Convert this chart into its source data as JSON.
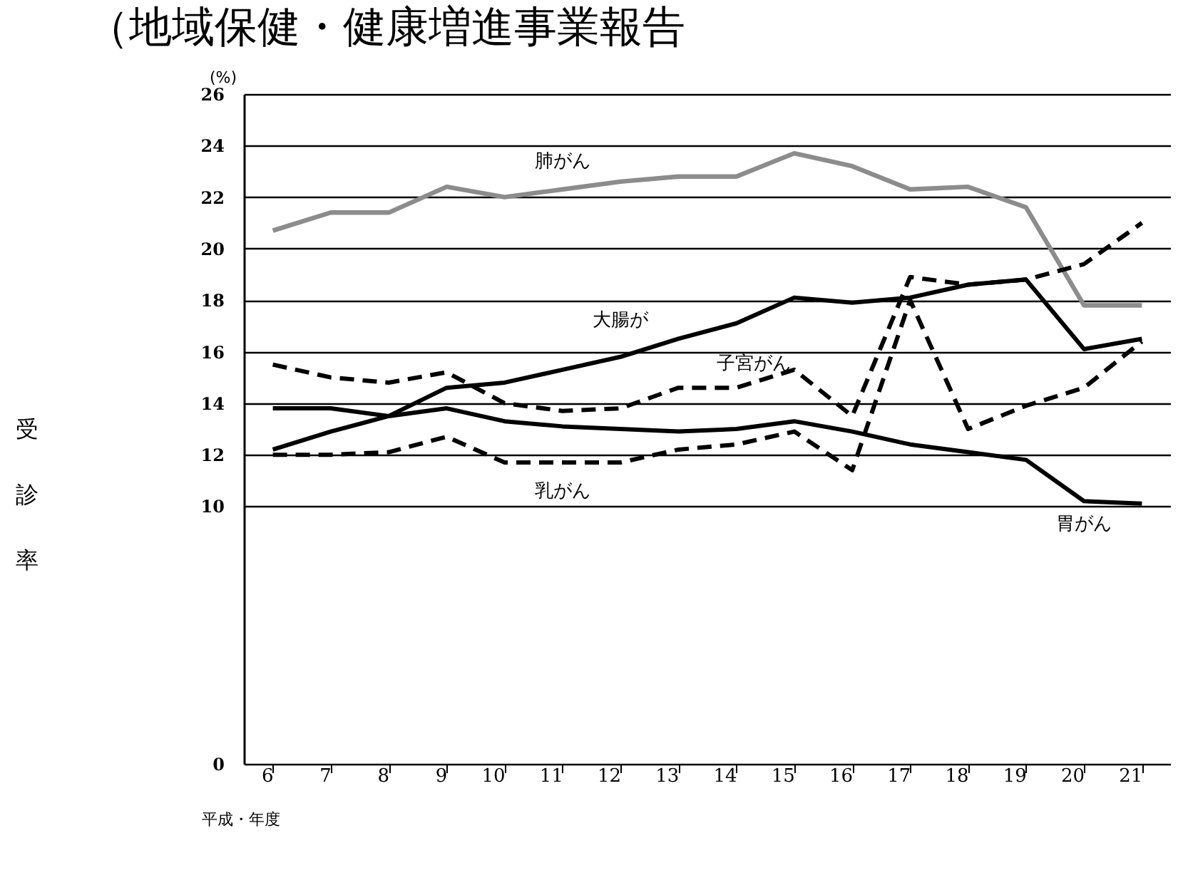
{
  "chart_data": {
    "type": "line",
    "title": "（地域保健・健康増進事業報告",
    "xlabel": "平成・年度",
    "ylabel": "受診率",
    "categories": [
      "6",
      "7",
      "8",
      "9",
      "10",
      "11",
      "12",
      "13",
      "14",
      "15",
      "16",
      "17",
      "18",
      "19",
      "20",
      "21"
    ],
    "ylim": [
      0,
      26
    ],
    "yticks": [
      0,
      10,
      12,
      14,
      16,
      18,
      20,
      22,
      24,
      26
    ],
    "grid": "y",
    "marker": "none",
    "series": [
      {
        "name": "肺がん",
        "color": "#8c8c8c",
        "line_style": "solid",
        "values": [
          20.7,
          21.4,
          21.4,
          22.4,
          22.0,
          22.3,
          22.6,
          22.8,
          22.8,
          23.7,
          23.2,
          22.3,
          22.4,
          21.6,
          17.8,
          17.8
        ]
      },
      {
        "name": "大腸が",
        "color": "#000000",
        "line_style": "solid",
        "values": [
          12.2,
          12.9,
          13.5,
          14.6,
          14.8,
          15.3,
          15.8,
          16.5,
          17.1,
          18.1,
          17.9,
          18.1,
          18.6,
          18.8,
          16.1,
          16.5
        ]
      },
      {
        "name": "子宮がん",
        "color": "#000000",
        "line_style": "dashed",
        "values": [
          15.5,
          15.0,
          14.8,
          15.2,
          14.0,
          13.7,
          13.8,
          14.6,
          14.6,
          15.3,
          13.5,
          18.9,
          18.6,
          18.8,
          19.4,
          21.0
        ]
      },
      {
        "name": "乳がん",
        "color": "#000000",
        "line_style": "dashed",
        "values": [
          12.0,
          12.0,
          12.1,
          12.7,
          11.7,
          11.7,
          11.7,
          12.2,
          12.4,
          12.9,
          11.4,
          18.0,
          13.0,
          13.9,
          14.6,
          16.4
        ]
      },
      {
        "name": "胃がん",
        "color": "#000000",
        "line_style": "solid",
        "values": [
          13.8,
          13.8,
          13.5,
          13.8,
          13.3,
          13.1,
          13.0,
          12.9,
          13.0,
          13.3,
          12.9,
          12.4,
          12.1,
          11.8,
          10.2,
          10.1
        ]
      }
    ],
    "annotations": [
      "(%)"
    ]
  }
}
